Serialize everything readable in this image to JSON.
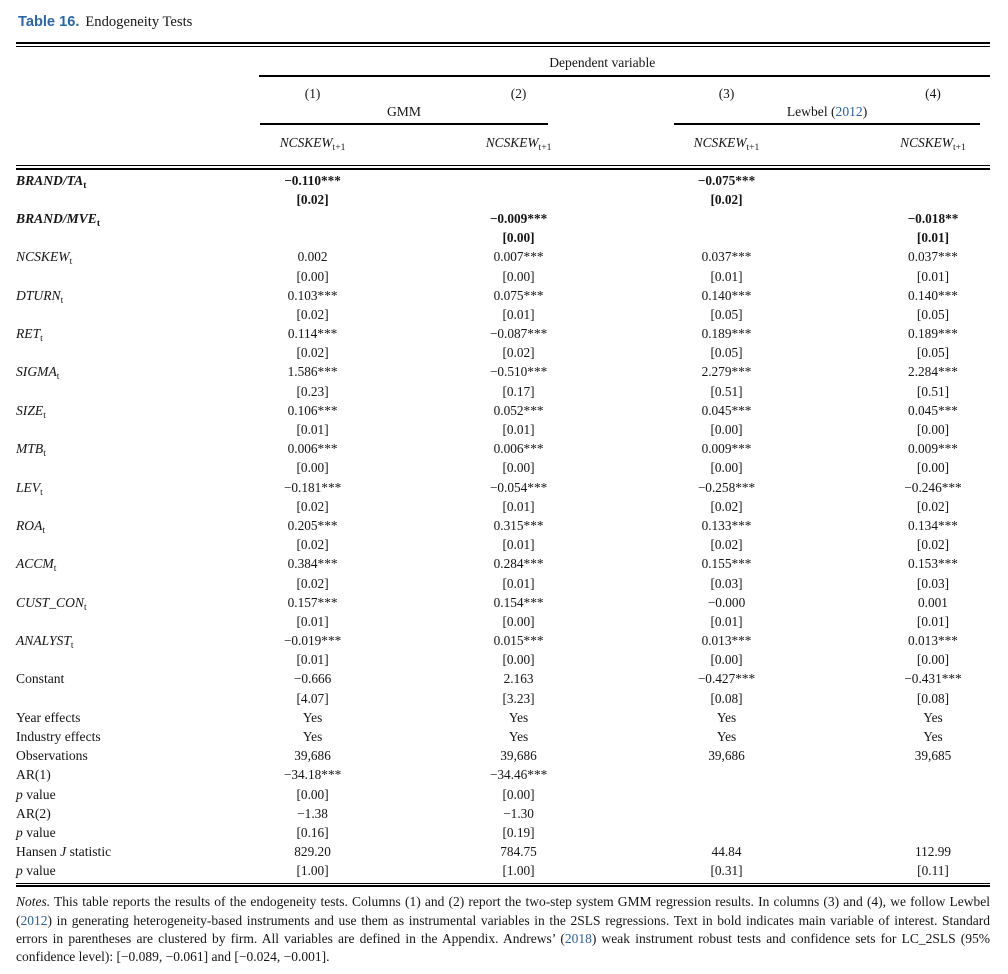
{
  "colors": {
    "title_blue": "#2a66ac",
    "link_blue": "#2b5f9f",
    "rule_black": "#000000",
    "text": "#151515"
  },
  "caption": {
    "label": "Table 16.",
    "text": "Endogeneity Tests"
  },
  "header": {
    "dependent_variable": "Dependent variable",
    "column_numbers": [
      "(1)",
      "(2)",
      "(3)",
      "(4)"
    ],
    "groups": [
      {
        "segments": [
          {
            "t": "GMM"
          }
        ]
      },
      {
        "segments": [
          {
            "t": "Lewbel ("
          },
          {
            "t": "2012",
            "link": true
          },
          {
            "t": ")"
          }
        ]
      }
    ],
    "column_heads": [
      {
        "main": "NCSKEW",
        "sub": "t+1"
      },
      {
        "main": "NCSKEW",
        "sub": "t+1"
      },
      {
        "main": "NCSKEW",
        "sub": "t+1"
      },
      {
        "main": "NCSKEW",
        "sub": "t+1"
      }
    ]
  },
  "table": {
    "rows": [
      {
        "label": [
          {
            "t": "BRAND/TA",
            "i": true,
            "b": true
          },
          {
            "t": "t",
            "sub": true,
            "b": true
          }
        ],
        "cells": [
          "−0.110***",
          "",
          "−0.075***",
          ""
        ],
        "bold": true
      },
      {
        "label": [],
        "cells": [
          "[0.02]",
          "",
          "[0.02]",
          ""
        ],
        "bold": true
      },
      {
        "label": [
          {
            "t": "BRAND/MVE",
            "i": true,
            "b": true
          },
          {
            "t": "t",
            "sub": true,
            "b": true
          }
        ],
        "cells": [
          "",
          "−0.009***",
          "",
          "−0.018**"
        ],
        "bold": true
      },
      {
        "label": [],
        "cells": [
          "",
          "[0.00]",
          "",
          "[0.01]"
        ],
        "bold": true
      },
      {
        "label": [
          {
            "t": "NCSKEW",
            "i": true
          },
          {
            "t": "t",
            "sub": true
          }
        ],
        "cells": [
          "0.002",
          "0.007***",
          "0.037***",
          "0.037***"
        ]
      },
      {
        "label": [],
        "cells": [
          "[0.00]",
          "[0.00]",
          "[0.01]",
          "[0.01]"
        ]
      },
      {
        "label": [
          {
            "t": "DTURN",
            "i": true
          },
          {
            "t": "t",
            "sub": true
          }
        ],
        "cells": [
          "0.103***",
          "0.075***",
          "0.140***",
          "0.140***"
        ]
      },
      {
        "label": [],
        "cells": [
          "[0.02]",
          "[0.01]",
          "[0.05]",
          "[0.05]"
        ]
      },
      {
        "label": [
          {
            "t": "RET",
            "i": true
          },
          {
            "t": "t",
            "sub": true
          }
        ],
        "cells": [
          "0.114***",
          "−0.087***",
          "0.189***",
          "0.189***"
        ]
      },
      {
        "label": [],
        "cells": [
          "[0.02]",
          "[0.02]",
          "[0.05]",
          "[0.05]"
        ]
      },
      {
        "label": [
          {
            "t": "SIGMA",
            "i": true
          },
          {
            "t": "t",
            "sub": true
          }
        ],
        "cells": [
          "1.586***",
          "−0.510***",
          "2.279***",
          "2.284***"
        ]
      },
      {
        "label": [],
        "cells": [
          "[0.23]",
          "[0.17]",
          "[0.51]",
          "[0.51]"
        ]
      },
      {
        "label": [
          {
            "t": "SIZE",
            "i": true
          },
          {
            "t": "t",
            "sub": true
          }
        ],
        "cells": [
          "0.106***",
          "0.052***",
          "0.045***",
          "0.045***"
        ]
      },
      {
        "label": [],
        "cells": [
          "[0.01]",
          "[0.01]",
          "[0.00]",
          "[0.00]"
        ]
      },
      {
        "label": [
          {
            "t": "MTB",
            "i": true
          },
          {
            "t": "t",
            "sub": true
          }
        ],
        "cells": [
          "0.006***",
          "0.006***",
          "0.009***",
          "0.009***"
        ]
      },
      {
        "label": [],
        "cells": [
          "[0.00]",
          "[0.00]",
          "[0.00]",
          "[0.00]"
        ]
      },
      {
        "label": [
          {
            "t": "LEV",
            "i": true
          },
          {
            "t": "t",
            "sub": true
          }
        ],
        "cells": [
          "−0.181***",
          "−0.054***",
          "−0.258***",
          "−0.246***"
        ]
      },
      {
        "label": [],
        "cells": [
          "[0.02]",
          "[0.01]",
          "[0.02]",
          "[0.02]"
        ]
      },
      {
        "label": [
          {
            "t": "ROA",
            "i": true
          },
          {
            "t": "t",
            "sub": true
          }
        ],
        "cells": [
          "0.205***",
          "0.315***",
          "0.133***",
          "0.134***"
        ]
      },
      {
        "label": [],
        "cells": [
          "[0.02]",
          "[0.01]",
          "[0.02]",
          "[0.02]"
        ]
      },
      {
        "label": [
          {
            "t": "ACCM",
            "i": true
          },
          {
            "t": "t",
            "sub": true
          }
        ],
        "cells": [
          "0.384***",
          "0.284***",
          "0.155***",
          "0.153***"
        ]
      },
      {
        "label": [],
        "cells": [
          "[0.02]",
          "[0.01]",
          "[0.03]",
          "[0.03]"
        ]
      },
      {
        "label": [
          {
            "t": "CUST_CON",
            "i": true
          },
          {
            "t": "t",
            "sub": true
          }
        ],
        "cells": [
          "0.157***",
          "0.154***",
          "−0.000",
          "0.001"
        ]
      },
      {
        "label": [],
        "cells": [
          "[0.01]",
          "[0.00]",
          "[0.01]",
          "[0.01]"
        ]
      },
      {
        "label": [
          {
            "t": "ANALYST",
            "i": true
          },
          {
            "t": "t",
            "sub": true
          }
        ],
        "cells": [
          "−0.019***",
          "0.015***",
          "0.013***",
          "0.013***"
        ]
      },
      {
        "label": [],
        "cells": [
          "[0.01]",
          "[0.00]",
          "[0.00]",
          "[0.00]"
        ]
      },
      {
        "label": [
          {
            "t": "Constant"
          }
        ],
        "cells": [
          "−0.666",
          "2.163",
          "−0.427***",
          "−0.431***"
        ]
      },
      {
        "label": [],
        "cells": [
          "[4.07]",
          "[3.23]",
          "[0.08]",
          "[0.08]"
        ]
      },
      {
        "label": [
          {
            "t": "Year effects"
          }
        ],
        "cells": [
          "Yes",
          "Yes",
          "Yes",
          "Yes"
        ]
      },
      {
        "label": [
          {
            "t": "Industry effects"
          }
        ],
        "cells": [
          "Yes",
          "Yes",
          "Yes",
          "Yes"
        ]
      },
      {
        "label": [
          {
            "t": "Observations"
          }
        ],
        "cells": [
          "39,686",
          "39,686",
          "39,686",
          "39,685"
        ]
      },
      {
        "label": [
          {
            "t": "AR(1)"
          }
        ],
        "cells": [
          "−34.18***",
          "−34.46***",
          "",
          ""
        ]
      },
      {
        "label": [
          {
            "t": "p",
            "i": true
          },
          {
            "t": " value"
          }
        ],
        "cells": [
          "[0.00]",
          "[0.00]",
          "",
          ""
        ]
      },
      {
        "label": [
          {
            "t": "AR(2)"
          }
        ],
        "cells": [
          "−1.38",
          "−1.30",
          "",
          ""
        ]
      },
      {
        "label": [
          {
            "t": "p",
            "i": true
          },
          {
            "t": " value"
          }
        ],
        "cells": [
          "[0.16]",
          "[0.19]",
          "",
          ""
        ]
      },
      {
        "label": [
          {
            "t": "Hansen "
          },
          {
            "t": "J",
            "i": true
          },
          {
            "t": " statistic"
          }
        ],
        "cells": [
          "829.20",
          "784.75",
          "44.84",
          "112.99"
        ]
      },
      {
        "label": [
          {
            "t": "p",
            "i": true
          },
          {
            "t": " value"
          }
        ],
        "cells": [
          "[1.00]",
          "[1.00]",
          "[0.31]",
          "[0.11]"
        ]
      }
    ]
  },
  "notes": {
    "segments": [
      {
        "t": "Notes.",
        "i": true
      },
      {
        "t": " This table reports the results of the endogeneity tests. Columns (1) and (2) report the two-step system GMM regression results. In columns (3) and (4), we follow Lewbel ("
      },
      {
        "t": "2012",
        "link": true
      },
      {
        "t": ") in generating heterogeneity-based instruments and use them as instrumental variables in the 2SLS regressions. Text in bold indicates main variable of interest. Standard errors in parentheses are clustered by firm. All variables are defined in the Appendix. Andrews’ ("
      },
      {
        "t": "2018",
        "link": true
      },
      {
        "t": ") weak instrument robust tests and confidence sets for LC_2SLS (95% confidence level): [−0.089, −0.061] and [−0.024, −0.001]."
      }
    ]
  }
}
